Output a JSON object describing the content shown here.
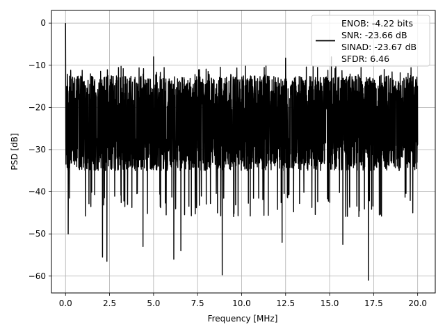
{
  "chart_data": {
    "type": "line",
    "title": "",
    "xlabel": "Frequency [MHz]",
    "ylabel": "PSD [dB]",
    "xlim": [
      -0.8,
      21.0
    ],
    "ylim": [
      -64.0,
      3.0
    ],
    "xticks": [
      0.0,
      2.5,
      5.0,
      7.5,
      10.0,
      12.5,
      15.0,
      17.5,
      20.0
    ],
    "xtick_labels": [
      "0.0",
      "2.5",
      "5.0",
      "7.5",
      "10.0",
      "12.5",
      "15.0",
      "17.5",
      "20.0"
    ],
    "yticks": [
      0,
      -10,
      -20,
      -30,
      -40,
      -50,
      -60
    ],
    "ytick_labels": [
      "0",
      "−10",
      "−20",
      "−30",
      "−40",
      "−50",
      "−60"
    ],
    "grid": true,
    "legend_position": "top-right",
    "series": [
      {
        "color": "#000000",
        "legend_lines": [
          "ENOB: -4.22 bits",
          "SNR: -23.66 dB",
          "SINAD: -23.67 dB",
          "SFDR: 6.46"
        ],
        "x_range": [
          0.0,
          20.0
        ],
        "baseline_db": -23,
        "upper_envelope_db": -14,
        "lower_envelope_db": -37,
        "peaks": [
          {
            "x": 0.0,
            "y": 0.0
          },
          {
            "x": 5.0,
            "y": -8.0
          },
          {
            "x": 15.1,
            "y": -8.0
          },
          {
            "x": 12.5,
            "y": -8.3
          }
        ],
        "dips": [
          {
            "x": 0.15,
            "y": -50.0
          },
          {
            "x": 2.1,
            "y": -55.5
          },
          {
            "x": 2.35,
            "y": -56.5
          },
          {
            "x": 4.4,
            "y": -53.0
          },
          {
            "x": 6.15,
            "y": -56.0
          },
          {
            "x": 6.55,
            "y": -54.0
          },
          {
            "x": 8.9,
            "y": -59.7
          },
          {
            "x": 12.3,
            "y": -52.0
          },
          {
            "x": 15.75,
            "y": -52.5
          },
          {
            "x": 17.2,
            "y": -61.0
          }
        ]
      }
    ]
  }
}
